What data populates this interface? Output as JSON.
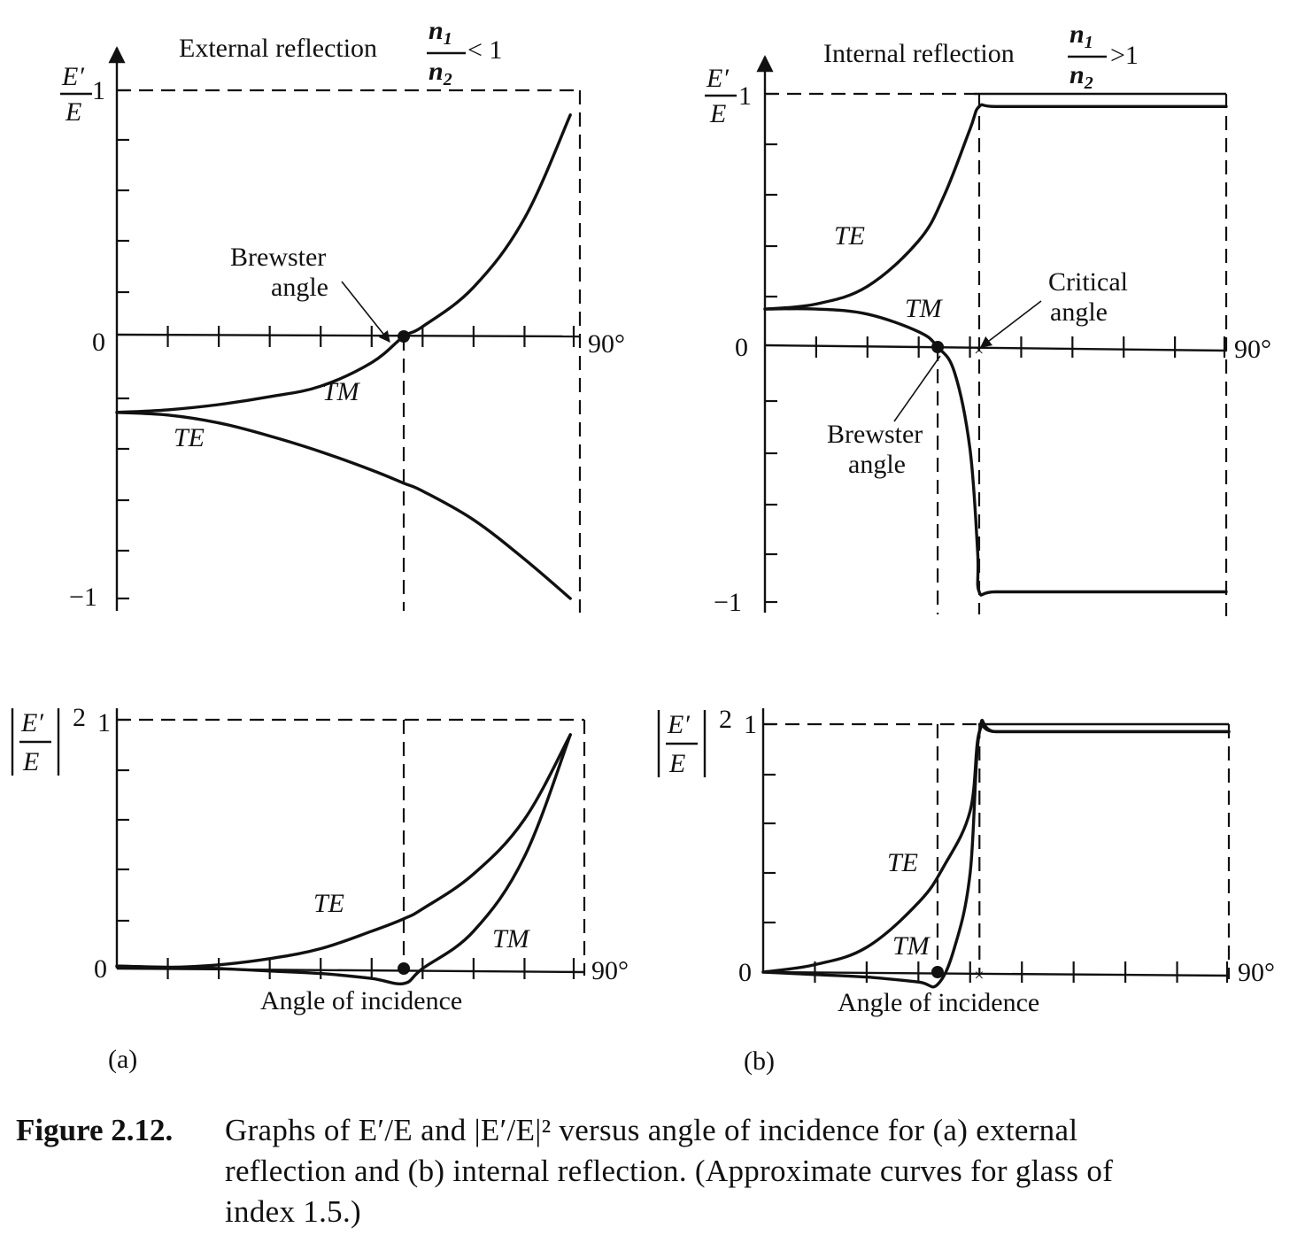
{
  "caption": {
    "label": "Figure 2.12.",
    "text": "Graphs of E′/E and |E′/E|² versus angle of incidence for (a) external reflection and (b) internal reflection. (Approximate curves for glass of index 1.5.)"
  },
  "panels": [
    {
      "id": "a",
      "label": "(a)",
      "title": "External reflection",
      "ratio_num": "n",
      "ratio_num_sub": "1",
      "ratio_den": "n",
      "ratio_den_sub": "2",
      "ratio_rel": "< 1"
    },
    {
      "id": "b",
      "label": "(b)",
      "title": "Internal reflection",
      "ratio_num": "n",
      "ratio_num_sub": "1",
      "ratio_den": "n",
      "ratio_den_sub": "2",
      "ratio_rel": ">1"
    }
  ],
  "ylabels": {
    "amp_num": "E′",
    "amp_den": "E",
    "pow_num": "E′",
    "pow_den": "E",
    "pow_exp": "2"
  },
  "ticklabels": {
    "one": "1",
    "zero": "0",
    "minus_one": "−1",
    "ninety": "90°"
  },
  "annotations": {
    "brewster_line1": "Brewster",
    "brewster_line2": "angle",
    "critical_line1": "Critical",
    "critical_line2": "angle"
  },
  "xlabel": "Angle of incidence",
  "chart_data": [
    {
      "type": "line",
      "panel": "a",
      "quantity": "E′/E",
      "xlim": [
        0,
        90
      ],
      "ylim": [
        -1,
        1
      ],
      "series": [
        {
          "name": "TM",
          "x": [
            0,
            10,
            20,
            30,
            40,
            50,
            56.3,
            60,
            70,
            80,
            89
          ],
          "y": [
            -0.29,
            -0.28,
            -0.26,
            -0.23,
            -0.19,
            -0.1,
            0.0,
            0.04,
            0.2,
            0.48,
            0.9
          ]
        },
        {
          "name": "TE",
          "x": [
            0,
            10,
            20,
            30,
            40,
            50,
            56.3,
            60,
            70,
            80,
            89
          ],
          "y": [
            -0.29,
            -0.3,
            -0.33,
            -0.38,
            -0.44,
            -0.51,
            -0.56,
            -0.59,
            -0.7,
            -0.85,
            -1.0
          ]
        }
      ],
      "markers": [
        {
          "label": "Brewster angle",
          "x": 56.3,
          "y": 0
        }
      ]
    },
    {
      "type": "line",
      "panel": "a",
      "quantity": "|E′/E|²",
      "xlim": [
        0,
        90
      ],
      "ylim": [
        0,
        1
      ],
      "series": [
        {
          "name": "TE",
          "x": [
            0,
            10,
            20,
            30,
            40,
            50,
            56.3,
            60,
            70,
            80,
            89
          ],
          "y": [
            0.01,
            0.005,
            0.015,
            0.04,
            0.08,
            0.15,
            0.2,
            0.24,
            0.38,
            0.6,
            0.94
          ]
        },
        {
          "name": "TM",
          "x": [
            0,
            10,
            20,
            30,
            40,
            50,
            56.3,
            60,
            70,
            80,
            89
          ],
          "y": [
            0.01,
            0.005,
            0.0,
            -0.01,
            -0.02,
            -0.04,
            -0.06,
            0.0,
            0.15,
            0.45,
            0.94
          ]
        }
      ],
      "markers": [
        {
          "label": "Brewster angle",
          "x": 56.3,
          "y": 0
        }
      ]
    },
    {
      "type": "line",
      "panel": "b",
      "quantity": "E′/E",
      "xlim": [
        0,
        90
      ],
      "ylim": [
        -1,
        1
      ],
      "series": [
        {
          "name": "TE",
          "x": [
            0,
            10,
            20,
            30,
            35,
            40,
            41.8,
            45,
            60,
            75,
            90
          ],
          "y": [
            0.15,
            0.17,
            0.24,
            0.42,
            0.6,
            0.86,
            0.95,
            0.95,
            0.95,
            0.95,
            0.95
          ]
        },
        {
          "name": "TM",
          "x": [
            0,
            10,
            20,
            30,
            33.7,
            37,
            40,
            41.5,
            41.8,
            45,
            60,
            75,
            90
          ],
          "y": [
            0.15,
            0.15,
            0.13,
            0.06,
            0.0,
            -0.1,
            -0.4,
            -0.8,
            -0.96,
            -0.96,
            -0.96,
            -0.96,
            -0.96
          ]
        }
      ],
      "markers": [
        {
          "label": "Brewster angle",
          "x": 33.7,
          "y": 0
        },
        {
          "label": "Critical angle",
          "x": 41.8,
          "y": 0
        }
      ]
    },
    {
      "type": "line",
      "panel": "b",
      "quantity": "|E′/E|²",
      "xlim": [
        0,
        90
      ],
      "ylim": [
        0,
        1
      ],
      "series": [
        {
          "name": "TE",
          "x": [
            0,
            10,
            20,
            30,
            35,
            40,
            41.8,
            45,
            60,
            75,
            90
          ],
          "y": [
            0.0,
            0.03,
            0.1,
            0.28,
            0.43,
            0.65,
            0.97,
            0.97,
            0.97,
            0.97,
            0.97
          ]
        },
        {
          "name": "TM",
          "x": [
            0,
            10,
            20,
            30,
            33.7,
            37,
            40,
            41.8,
            45,
            60,
            75,
            90
          ],
          "y": [
            0.0,
            -0.01,
            -0.02,
            -0.04,
            -0.05,
            0.1,
            0.4,
            0.97,
            0.97,
            0.97,
            0.97,
            0.97
          ]
        }
      ],
      "markers": [
        {
          "label": "Brewster angle",
          "x": 33.7,
          "y": 0
        },
        {
          "label": "Critical angle",
          "x": 41.8,
          "y": 0
        }
      ]
    }
  ]
}
